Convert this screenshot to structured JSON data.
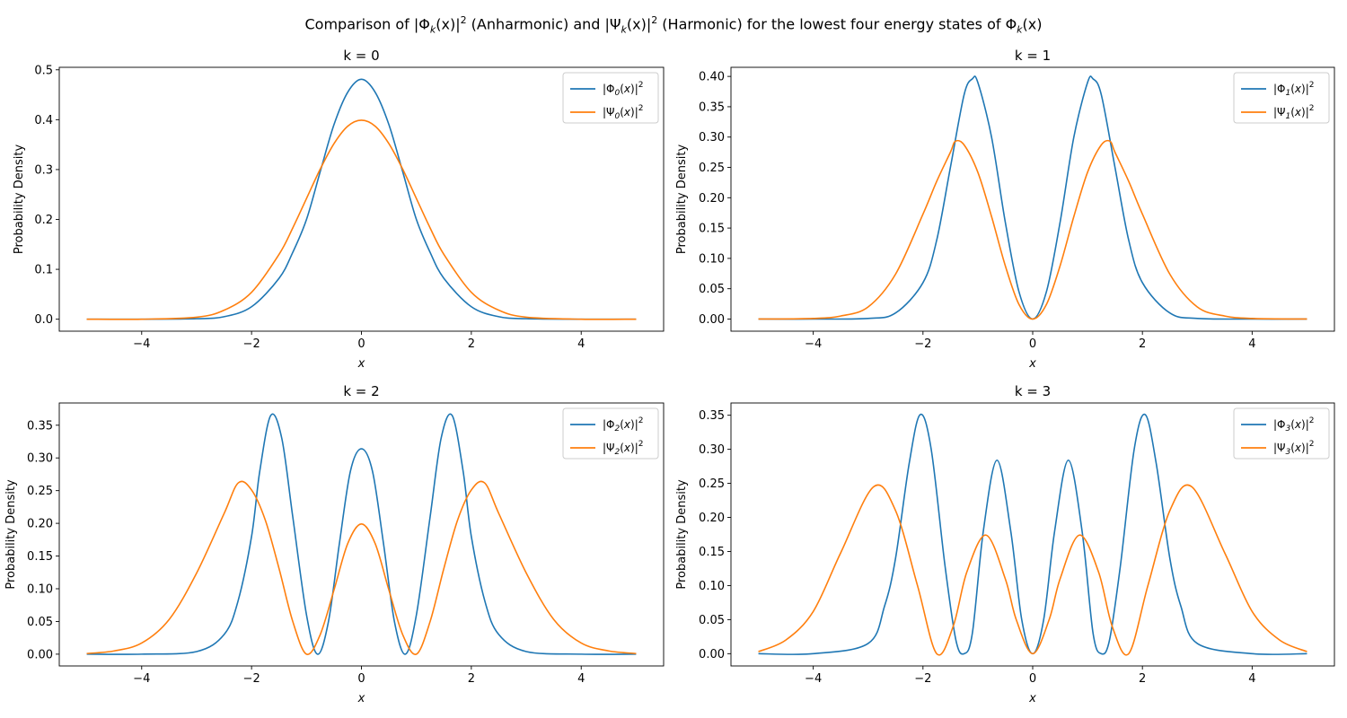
{
  "figure": {
    "title_prefix": "Comparison of |Φ",
    "title_part2": "(x)|",
    "title_part3": " (Anharmonic) and |Ψ",
    "title_part4": "(x)|",
    "title_part5": " (Harmonic) for the lowest four energy states of Φ",
    "title_part6": "(x)",
    "sub_k": "k",
    "sup_2": "2"
  },
  "colors": {
    "anharmonic": "#1f77b4",
    "harmonic": "#ff7f0e"
  },
  "chart_data": [
    {
      "type": "line",
      "title": "k = 0",
      "xlabel": "x",
      "ylabel": "Probability Density",
      "k": 0,
      "xlim": [
        -5.5,
        5.5
      ],
      "ylim": [
        -0.024,
        0.505
      ],
      "xticks": [
        -4,
        -2,
        0,
        2,
        4
      ],
      "xtick_labels": [
        "−4",
        "−2",
        "0",
        "2",
        "4"
      ],
      "yticks": [
        0.0,
        0.1,
        0.2,
        0.3,
        0.4,
        0.5
      ],
      "ytick_labels": [
        "0.0",
        "0.1",
        "0.2",
        "0.3",
        "0.4",
        "0.5"
      ],
      "legend": {
        "position": "upper right",
        "entries": [
          {
            "sym": "Φ",
            "k": "0",
            "series": "anharmonic"
          },
          {
            "sym": "Ψ",
            "k": "0",
            "series": "harmonic"
          }
        ]
      },
      "series": [
        {
          "key": "anharmonic",
          "x": [
            -5,
            -4,
            -3,
            -2.5,
            -2,
            -1.5,
            -1.25,
            -1,
            -0.75,
            -0.5,
            -0.25,
            0,
            0.25,
            0.5,
            0.75,
            1,
            1.25,
            1.5,
            2,
            2.5,
            3,
            4,
            5
          ],
          "y": [
            0,
            0,
            0.001,
            0.005,
            0.025,
            0.082,
            0.134,
            0.2,
            0.296,
            0.39,
            0.455,
            0.481,
            0.455,
            0.39,
            0.296,
            0.2,
            0.134,
            0.082,
            0.025,
            0.005,
            0.001,
            0,
            0
          ]
        },
        {
          "key": "harmonic",
          "x": [
            -5,
            -4,
            -3,
            -2.5,
            -2,
            -1.5,
            -1.25,
            -1,
            -0.75,
            -0.5,
            -0.25,
            0,
            0.25,
            0.5,
            0.75,
            1,
            1.25,
            1.5,
            2,
            2.5,
            3,
            4,
            5
          ],
          "y": [
            0,
            0,
            0.004,
            0.018,
            0.054,
            0.13,
            0.183,
            0.242,
            0.301,
            0.352,
            0.387,
            0.399,
            0.387,
            0.352,
            0.301,
            0.242,
            0.183,
            0.13,
            0.054,
            0.018,
            0.004,
            0,
            0
          ]
        }
      ]
    },
    {
      "type": "line",
      "title": "k = 1",
      "xlabel": "x",
      "ylabel": "Probability Density",
      "k": 1,
      "xlim": [
        -5.5,
        5.5
      ],
      "ylim": [
        -0.02,
        0.415
      ],
      "xticks": [
        -4,
        -2,
        0,
        2,
        4
      ],
      "xtick_labels": [
        "−4",
        "−2",
        "0",
        "2",
        "4"
      ],
      "yticks": [
        0.0,
        0.05,
        0.1,
        0.15,
        0.2,
        0.25,
        0.3,
        0.35,
        0.4
      ],
      "ytick_labels": [
        "0.00",
        "0.05",
        "0.10",
        "0.15",
        "0.20",
        "0.25",
        "0.30",
        "0.35",
        "0.40"
      ],
      "legend": {
        "position": "upper right",
        "entries": [
          {
            "sym": "Φ",
            "k": "1",
            "series": "anharmonic"
          },
          {
            "sym": "Ψ",
            "k": "1",
            "series": "harmonic"
          }
        ]
      },
      "series": [
        {
          "key": "anharmonic",
          "x": [
            -5,
            -4,
            -3,
            -2.5,
            -2,
            -1.75,
            -1.5,
            -1.25,
            -1.1,
            -1,
            -0.75,
            -0.5,
            -0.25,
            0,
            0.25,
            0.5,
            0.75,
            1,
            1.1,
            1.25,
            1.5,
            1.75,
            2,
            2.5,
            3,
            4,
            5
          ],
          "y": [
            0,
            0,
            0.001,
            0.01,
            0.06,
            0.13,
            0.25,
            0.37,
            0.396,
            0.39,
            0.3,
            0.16,
            0.045,
            0,
            0.045,
            0.16,
            0.3,
            0.39,
            0.396,
            0.37,
            0.25,
            0.13,
            0.06,
            0.01,
            0.001,
            0,
            0
          ]
        },
        {
          "key": "harmonic",
          "x": [
            -5,
            -4,
            -3.5,
            -3,
            -2.5,
            -2,
            -1.75,
            -1.5,
            -1.41,
            -1.25,
            -1,
            -0.75,
            -0.5,
            -0.25,
            0,
            0.25,
            0.5,
            0.75,
            1,
            1.25,
            1.41,
            1.5,
            1.75,
            2,
            2.5,
            3,
            3.5,
            4,
            5
          ],
          "y": [
            0,
            0.001,
            0.005,
            0.02,
            0.074,
            0.173,
            0.227,
            0.275,
            0.293,
            0.287,
            0.242,
            0.169,
            0.088,
            0.024,
            0,
            0.024,
            0.088,
            0.169,
            0.242,
            0.287,
            0.293,
            0.275,
            0.227,
            0.173,
            0.074,
            0.02,
            0.005,
            0.001,
            0
          ]
        }
      ]
    },
    {
      "type": "line",
      "title": "k = 2",
      "xlabel": "x",
      "ylabel": "Probability Density",
      "k": 2,
      "xlim": [
        -5.5,
        5.5
      ],
      "ylim": [
        -0.018,
        0.384
      ],
      "xticks": [
        -4,
        -2,
        0,
        2,
        4
      ],
      "xtick_labels": [
        "−4",
        "−2",
        "0",
        "2",
        "4"
      ],
      "yticks": [
        0.0,
        0.05,
        0.1,
        0.15,
        0.2,
        0.25,
        0.3,
        0.35
      ],
      "ytick_labels": [
        "0.00",
        "0.05",
        "0.10",
        "0.15",
        "0.20",
        "0.25",
        "0.30",
        "0.35"
      ],
      "legend": {
        "position": "upper right",
        "entries": [
          {
            "sym": "Φ",
            "k": "2",
            "series": "anharmonic"
          },
          {
            "sym": "Ψ",
            "k": "2",
            "series": "harmonic"
          }
        ]
      },
      "series": [
        {
          "key": "anharmonic",
          "x": [
            -5,
            -4,
            -3,
            -2.5,
            -2.25,
            -2,
            -1.85,
            -1.65,
            -1.45,
            -1.25,
            -1,
            -0.8,
            -0.6,
            -0.4,
            -0.2,
            0,
            0.2,
            0.4,
            0.6,
            0.8,
            1,
            1.25,
            1.45,
            1.65,
            1.85,
            2,
            2.25,
            2.5,
            3,
            4,
            5
          ],
          "y": [
            0,
            0,
            0.004,
            0.03,
            0.08,
            0.18,
            0.28,
            0.365,
            0.33,
            0.21,
            0.06,
            0,
            0.05,
            0.17,
            0.28,
            0.314,
            0.28,
            0.17,
            0.05,
            0,
            0.06,
            0.21,
            0.33,
            0.365,
            0.28,
            0.18,
            0.08,
            0.03,
            0.004,
            0,
            0
          ]
        },
        {
          "key": "harmonic",
          "x": [
            -5,
            -4.5,
            -4,
            -3.5,
            -3,
            -2.5,
            -2.24,
            -2,
            -1.75,
            -1.5,
            -1.25,
            -1,
            -0.75,
            -0.5,
            -0.25,
            0,
            0.25,
            0.5,
            0.75,
            1,
            1.25,
            1.5,
            1.75,
            2,
            2.24,
            2.5,
            3,
            3.5,
            4,
            4.5,
            5
          ],
          "y": [
            0.001,
            0.005,
            0.017,
            0.053,
            0.124,
            0.215,
            0.262,
            0.251,
            0.205,
            0.131,
            0.05,
            0,
            0.03,
            0.098,
            0.169,
            0.199,
            0.169,
            0.098,
            0.03,
            0,
            0.05,
            0.131,
            0.205,
            0.251,
            0.262,
            0.215,
            0.124,
            0.053,
            0.017,
            0.005,
            0.001
          ]
        }
      ]
    },
    {
      "type": "line",
      "title": "k = 3",
      "xlabel": "x",
      "ylabel": "Probability Density",
      "k": 3,
      "xlim": [
        -5.5,
        5.5
      ],
      "ylim": [
        -0.018,
        0.368
      ],
      "xticks": [
        -4,
        -2,
        0,
        2,
        4
      ],
      "xtick_labels": [
        "−4",
        "−2",
        "0",
        "2",
        "4"
      ],
      "yticks": [
        0.0,
        0.05,
        0.1,
        0.15,
        0.2,
        0.25,
        0.3,
        0.35
      ],
      "ytick_labels": [
        "0.00",
        "0.05",
        "0.10",
        "0.15",
        "0.20",
        "0.25",
        "0.30",
        "0.35"
      ],
      "legend": {
        "position": "upper right",
        "entries": [
          {
            "sym": "Φ",
            "k": "3",
            "series": "anharmonic"
          },
          {
            "sym": "Ψ",
            "k": "3",
            "series": "harmonic"
          }
        ]
      },
      "series": [
        {
          "key": "anharmonic",
          "x": [
            -5,
            -4,
            -3,
            -2.7,
            -2.5,
            -2.25,
            -2.05,
            -1.85,
            -1.6,
            -1.4,
            -1.25,
            -1.1,
            -0.9,
            -0.65,
            -0.4,
            -0.2,
            0,
            0.2,
            0.4,
            0.65,
            0.9,
            1.1,
            1.25,
            1.4,
            1.6,
            1.85,
            2.05,
            2.25,
            2.5,
            2.7,
            3,
            4,
            5
          ],
          "y": [
            0,
            0,
            0.015,
            0.07,
            0.14,
            0.28,
            0.351,
            0.3,
            0.13,
            0.02,
            0,
            0.03,
            0.18,
            0.284,
            0.18,
            0.05,
            0,
            0.05,
            0.18,
            0.284,
            0.18,
            0.03,
            0,
            0.02,
            0.13,
            0.3,
            0.351,
            0.28,
            0.14,
            0.07,
            0.015,
            0,
            0
          ]
        },
        {
          "key": "harmonic",
          "x": [
            -5,
            -4.5,
            -4,
            -3.5,
            -2.9,
            -2.5,
            -2.1,
            -1.75,
            -1.45,
            -1.2,
            -0.85,
            -0.5,
            -0.3,
            0,
            0.3,
            0.5,
            0.85,
            1.2,
            1.45,
            1.75,
            2.1,
            2.5,
            2.9,
            3.5,
            4,
            4.5,
            5
          ],
          "y": [
            0.003,
            0.02,
            0.062,
            0.148,
            0.245,
            0.21,
            0.1,
            0,
            0.04,
            0.12,
            0.174,
            0.11,
            0.05,
            0,
            0.05,
            0.11,
            0.174,
            0.12,
            0.04,
            0,
            0.1,
            0.21,
            0.245,
            0.148,
            0.062,
            0.02,
            0.003
          ]
        }
      ]
    }
  ]
}
